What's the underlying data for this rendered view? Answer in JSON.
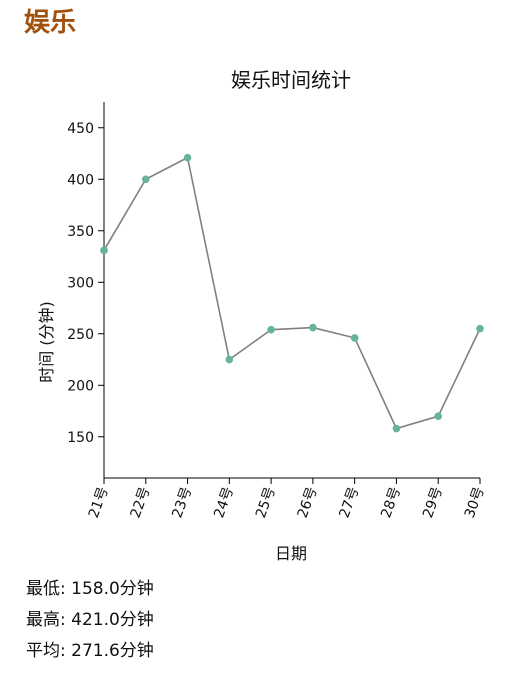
{
  "page": {
    "heading": "娱乐"
  },
  "chart_data": {
    "type": "line",
    "title": "娱乐时间统计",
    "xlabel": "日期",
    "ylabel": "时间 (分钟)",
    "categories": [
      "21号",
      "22号",
      "23号",
      "24号",
      "25号",
      "26号",
      "27号",
      "28号",
      "29号",
      "30号"
    ],
    "values": [
      331,
      400,
      421,
      225,
      254,
      256,
      246,
      158,
      170,
      255
    ],
    "ylim": [
      110,
      475
    ],
    "yticks": [
      150,
      200,
      250,
      300,
      350,
      400,
      450
    ],
    "line_color": "#808080",
    "point_color": "#66b39a",
    "grid": false
  },
  "stats": {
    "min": {
      "label": "最低:",
      "value": "158.0分钟"
    },
    "max": {
      "label": "最高:",
      "value": "421.0分钟"
    },
    "avg": {
      "label": "平均:",
      "value": "271.6分钟"
    }
  }
}
